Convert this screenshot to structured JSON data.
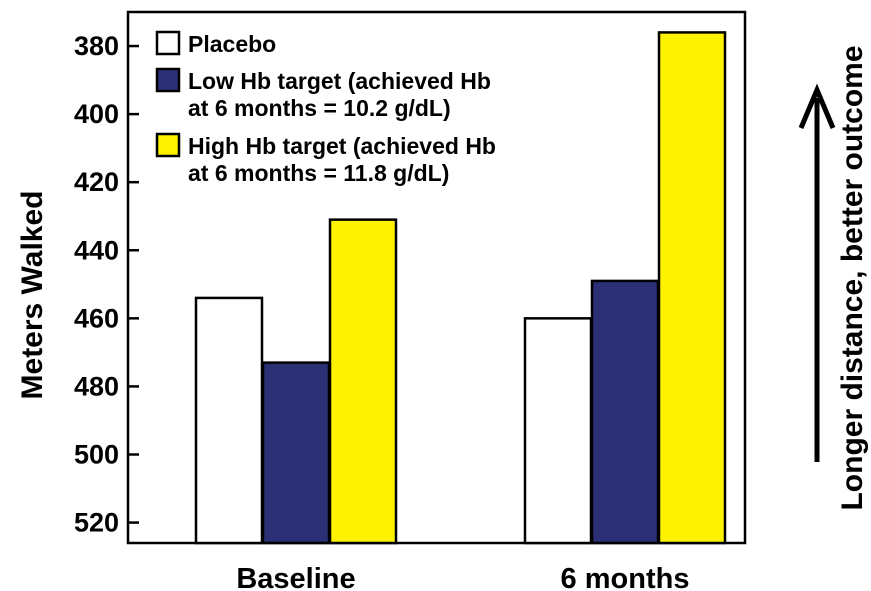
{
  "chart_data": {
    "type": "bar",
    "ylabel": "Meters Walked",
    "xlabel": "",
    "y_axis_inverted": true,
    "ylim": [
      370,
      526
    ],
    "yticks": [
      380,
      400,
      420,
      440,
      460,
      480,
      500,
      520
    ],
    "categories": [
      "Baseline",
      "6 months"
    ],
    "series": [
      {
        "name": "Placebo",
        "color": "#ffffff",
        "values": [
          454,
          460
        ]
      },
      {
        "name": "Low Hb target (achieved Hb at 6 months = 10.2 g/dL)",
        "label_lines": [
          "Low Hb target (achieved Hb",
          "at 6 months = 10.2 g/dL)"
        ],
        "color": "#2b2f73",
        "values": [
          473,
          449
        ]
      },
      {
        "name": "High Hb target (achieved Hb at 6 months = 11.8 g/dL)",
        "label_lines": [
          "High Hb target (achieved Hb",
          "at 6 months = 11.8 g/dL)"
        ],
        "color": "#fff200",
        "values": [
          431,
          376
        ]
      }
    ],
    "legend_position": "top-left",
    "grid": false,
    "annotation": {
      "text": "Longer distance, better outcome",
      "arrow_direction": "up"
    }
  }
}
